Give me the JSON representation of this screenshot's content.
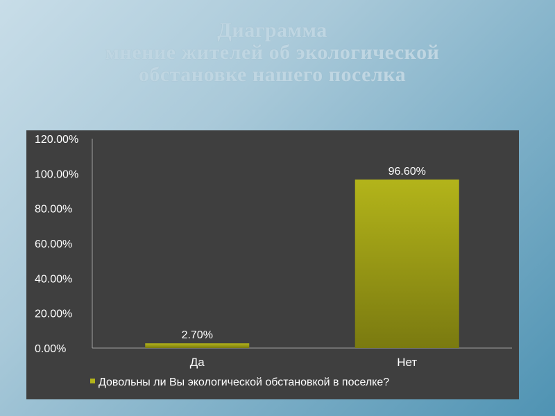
{
  "title": {
    "line1": "Диаграмма",
    "line2": "мнение жителей об экологической",
    "line3": "обстановке нашего поселка"
  },
  "colors": {
    "bar_top": "#b3b41a",
    "bar_bottom": "#7a7a10",
    "panel": "#3f3f3f",
    "axis": "#a0a0a0"
  },
  "chart_data": {
    "type": "bar",
    "categories": [
      "Да",
      "Нет"
    ],
    "series": [
      {
        "name": "Довольны ли Вы экологической обстановкой в поселке?",
        "values": [
          2.7,
          96.6
        ],
        "labels": [
          "2.70%",
          "96.60%"
        ]
      }
    ],
    "ylim": [
      0,
      120
    ],
    "yticks": [
      "0.00%",
      "20.00%",
      "40.00%",
      "60.00%",
      "80.00%",
      "100.00%",
      "120.00%"
    ],
    "grid": false,
    "legend": "bottom"
  }
}
